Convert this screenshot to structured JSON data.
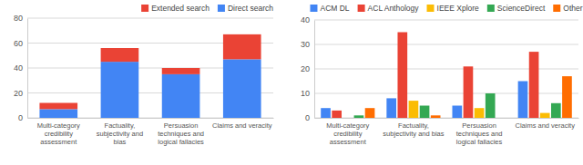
{
  "chart_data": [
    {
      "type": "bar",
      "stacked": true,
      "grid": true,
      "legend": "top-right",
      "categories": [
        "Multi-category credibility assessment",
        "Factuality, subjectivity and bias",
        "Persuasion techniques and logical fallacies",
        "Claims and veracity"
      ],
      "series": [
        {
          "name": "Direct search",
          "color": "#4285f4",
          "values": [
            7,
            45,
            35,
            47
          ]
        },
        {
          "name": "Extended search",
          "color": "#ea4335",
          "values": [
            5,
            11,
            5,
            20
          ]
        }
      ],
      "ylim": [
        0,
        80
      ],
      "yticks": [
        0,
        20,
        40,
        60,
        80
      ]
    },
    {
      "type": "bar",
      "grid": true,
      "legend": "top",
      "categories": [
        "Multi-category credibility assessment",
        "Factuality, subjectivity and bias",
        "Persuasion techniques and logical fallacies",
        "Claims and veracity"
      ],
      "series": [
        {
          "name": "ACM DL",
          "color": "#4285f4",
          "values": [
            4,
            8,
            5,
            15
          ]
        },
        {
          "name": "ACL Anthology",
          "color": "#ea4335",
          "values": [
            3,
            35,
            21,
            27
          ]
        },
        {
          "name": "IEEE Xplore",
          "color": "#fbbc04",
          "values": [
            0,
            7,
            4,
            2
          ]
        },
        {
          "name": "ScienceDirect",
          "color": "#34a853",
          "values": [
            1,
            5,
            10,
            6
          ]
        },
        {
          "name": "Other",
          "color": "#ff6d01",
          "values": [
            4,
            1,
            0,
            17
          ]
        }
      ],
      "ylim": [
        0,
        40
      ],
      "yticks": [
        0,
        10,
        20,
        30,
        40
      ]
    }
  ]
}
